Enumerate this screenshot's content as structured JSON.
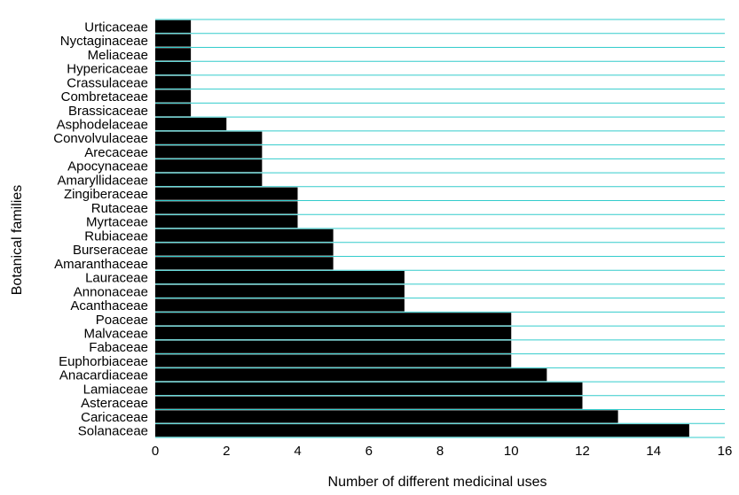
{
  "chart_data": {
    "type": "bar",
    "orientation": "horizontal",
    "title": "",
    "xlabel": "Number of different medicinal uses",
    "ylabel": "Botanical families",
    "xlim": [
      0,
      16
    ],
    "xticks": [
      "0",
      "2",
      "4",
      "6",
      "8",
      "10",
      "12",
      "14",
      "16"
    ],
    "grid": "horizontal lines between categories",
    "colors": {
      "bar": "#000000",
      "grid": "#33cccc"
    },
    "categories": [
      "Urticaceae",
      "Nyctaginaceae",
      "Meliaceae",
      "Hypericaceae",
      "Crassulaceae",
      "Combretaceae",
      "Brassicaceae",
      "Asphodelaceae",
      "Convolvulaceae",
      "Arecaceae",
      "Apocynaceae",
      "Amaryllidaceae",
      "Zingiberaceae",
      "Rutaceae",
      "Myrtaceae",
      "Rubiaceae",
      "Burseraceae",
      "Amaranthaceae",
      "Lauraceae",
      "Annonaceae",
      "Acanthaceae",
      "Poaceae",
      "Malvaceae",
      "Fabaceae",
      "Euphorbiaceae",
      "Anacardiaceae",
      "Lamiaceae",
      "Asteraceae",
      "Caricaceae",
      "Solanaceae"
    ],
    "values": [
      1,
      1,
      1,
      1,
      1,
      1,
      1,
      2,
      3,
      3,
      3,
      3,
      4,
      4,
      4,
      5,
      5,
      5,
      7,
      7,
      7,
      10,
      10,
      10,
      10,
      11,
      12,
      12,
      13,
      15
    ]
  }
}
